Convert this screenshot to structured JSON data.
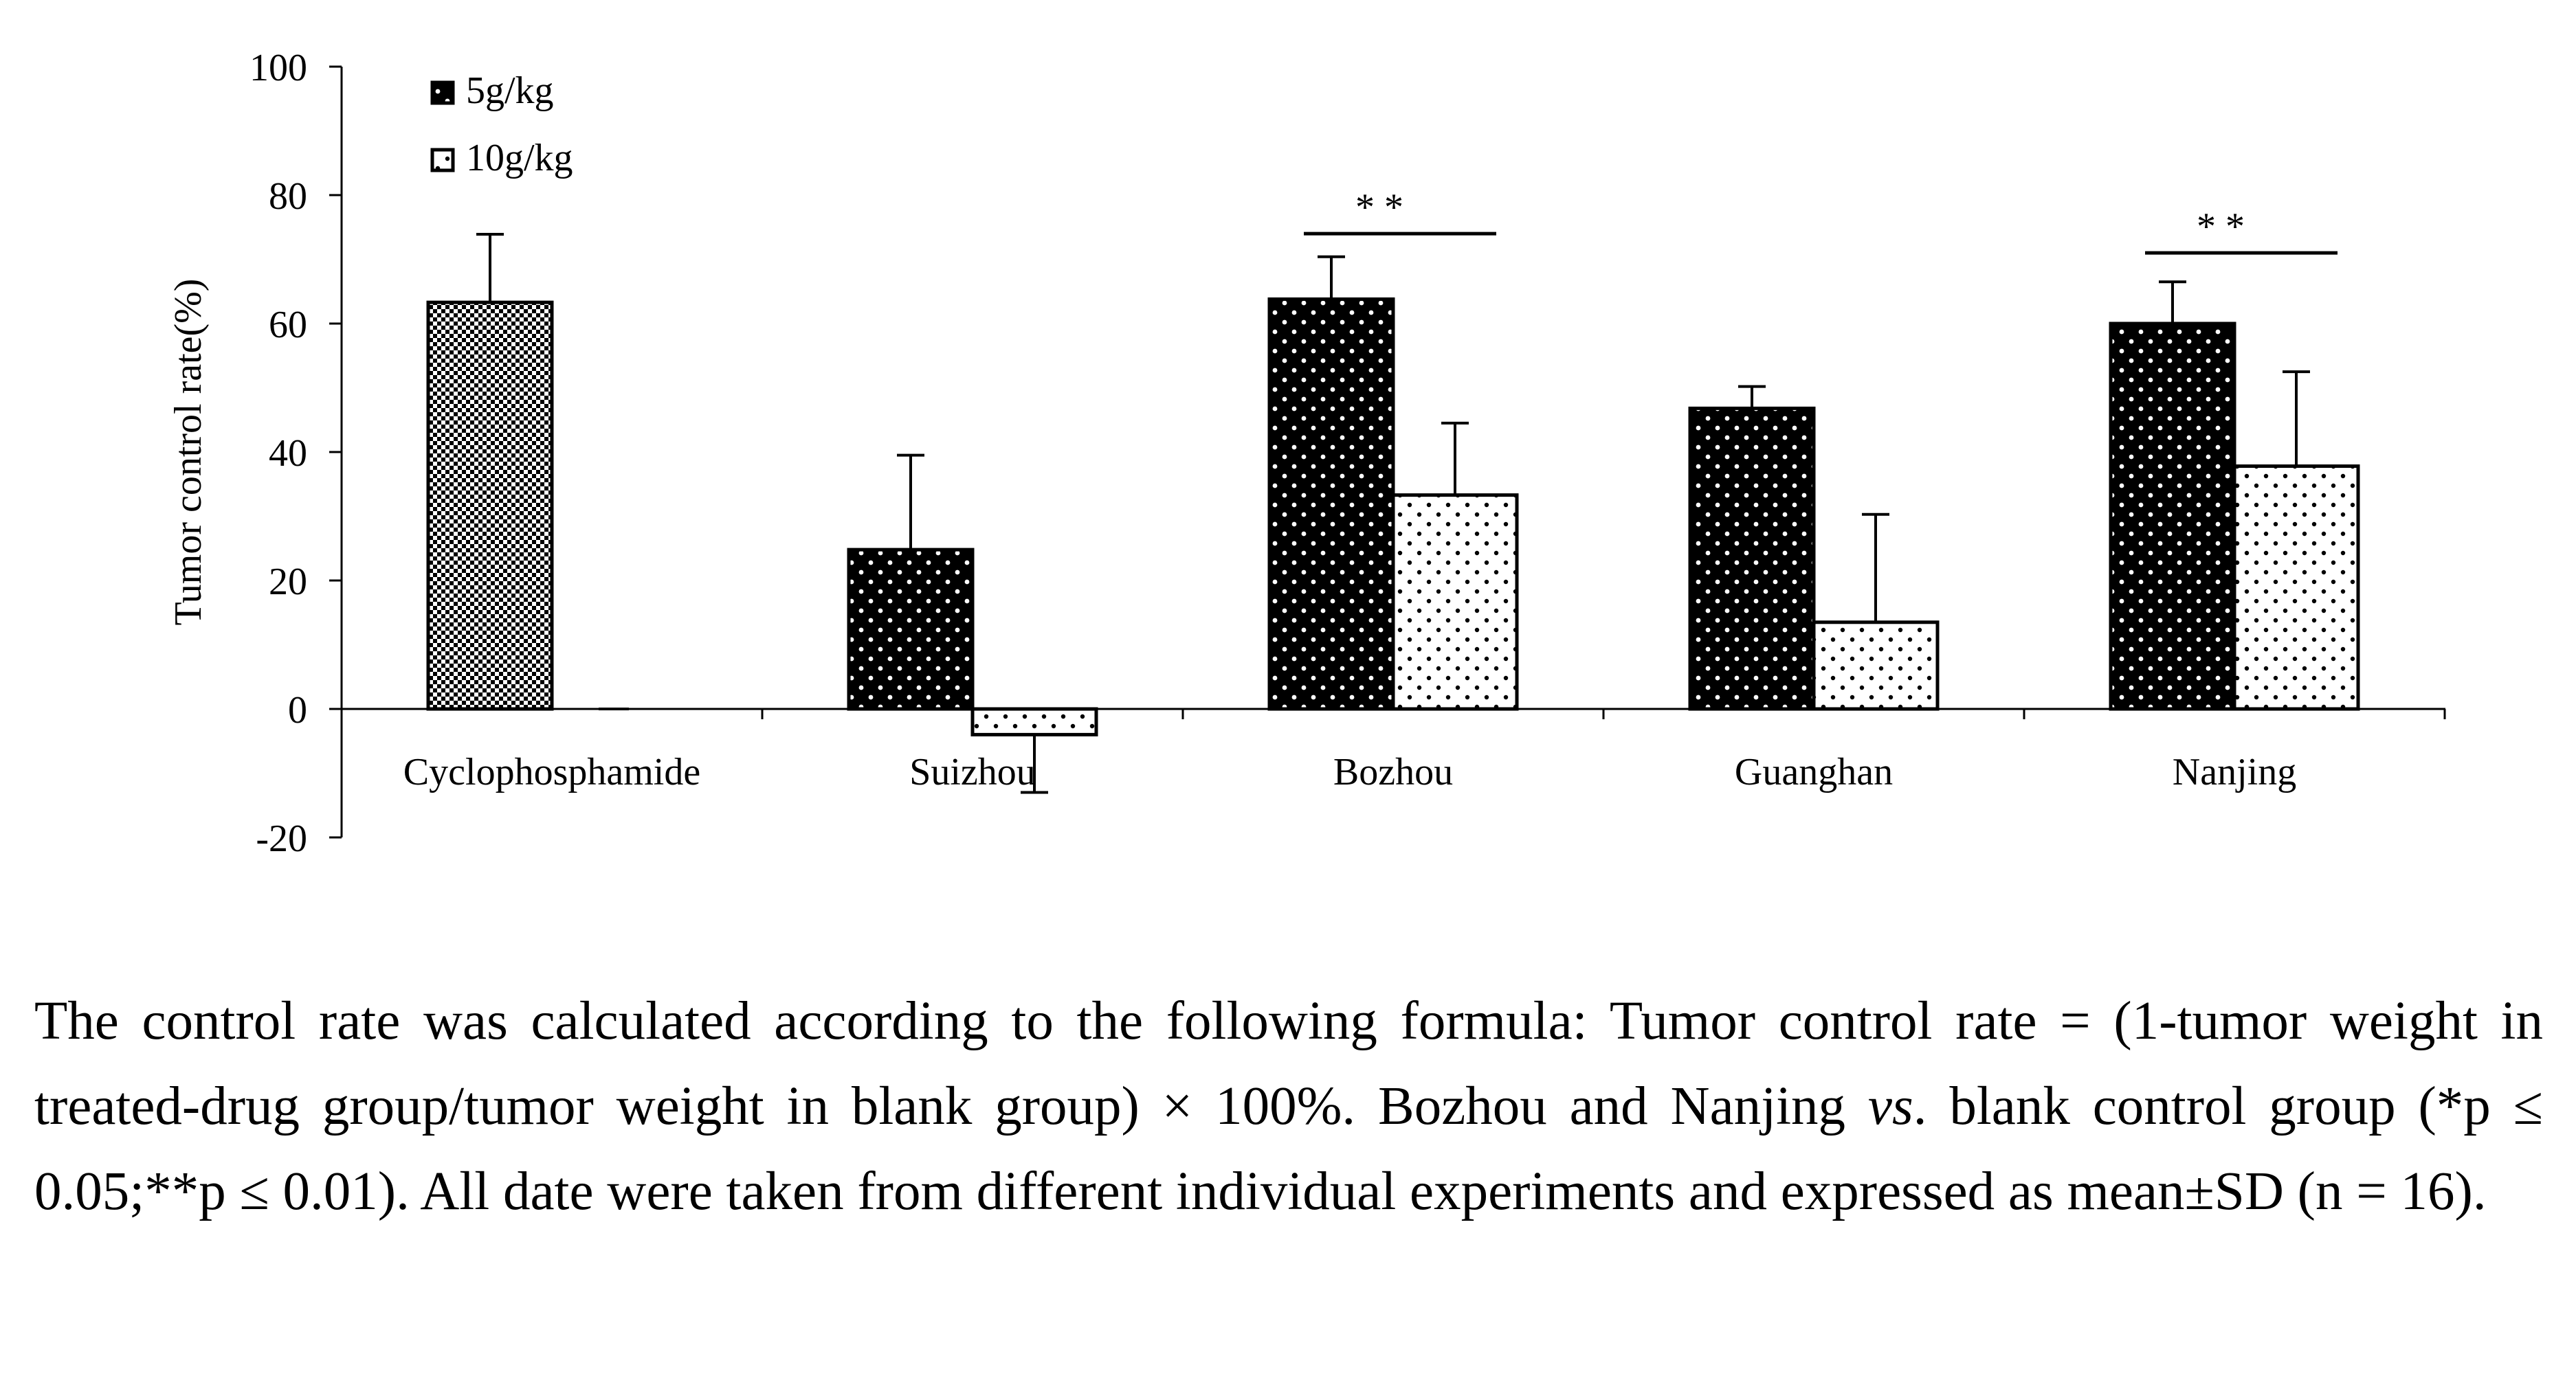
{
  "chart_data": {
    "type": "bar",
    "title": "",
    "xlabel": "",
    "ylabel": "Tumor control rate(%)",
    "ylim": [
      -20,
      100
    ],
    "yticks": [
      -20,
      0,
      20,
      40,
      60,
      80,
      100
    ],
    "tick_labels": [
      "-20",
      "0",
      "20",
      "40",
      "60",
      "80",
      "100"
    ],
    "categories": [
      "Cyclophosphamide",
      "Suizhou",
      "Bozhou",
      "Guanghan",
      "Nanjing"
    ],
    "series": [
      {
        "name": "5g/kg",
        "values": [
          63.3,
          24.8,
          63.8,
          46.8,
          60.0
        ],
        "errors": [
          10.6,
          14.7,
          6.6,
          3.4,
          6.5
        ]
      },
      {
        "name": "10g/kg",
        "values": [
          0,
          -4.0,
          33.3,
          13.5,
          37.8
        ],
        "errors": [
          0,
          9.0,
          11.2,
          16.8,
          14.7
        ]
      }
    ],
    "significance": [
      {
        "category": "Bozhou",
        "label": "* *",
        "y": 74
      },
      {
        "category": "Nanjing",
        "label": "* *",
        "y": 71
      }
    ],
    "legend_position": "top-left",
    "grid": false
  },
  "caption": {
    "part1": "The control rate was calculated according to the following formula: Tumor control rate = (1-tumor weight in treated-drug group/tumor weight in blank group) × 100%. Bozhou and Nanjing ",
    "vs": "vs",
    "part2": ". blank control group (*p ≤ 0.05;**p ≤ 0.01). All date were taken from different individual experiments and expressed as mean±SD (n = 16)."
  }
}
